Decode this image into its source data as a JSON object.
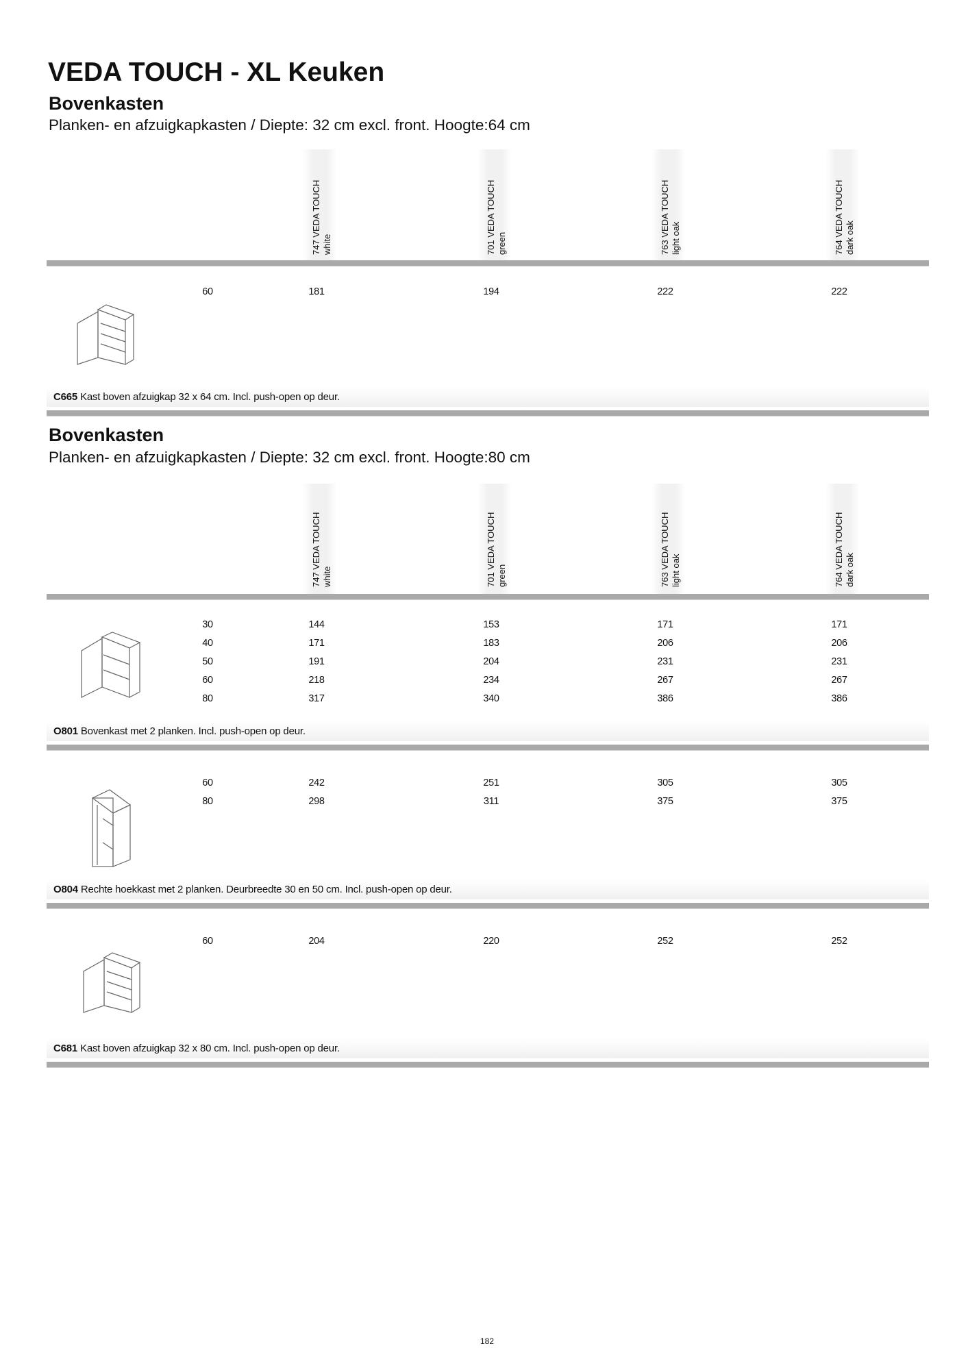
{
  "title": "VEDA TOUCH - XL Keuken",
  "columns": [
    {
      "code_name": "747 VEDA TOUCH",
      "color": "white"
    },
    {
      "code_name": "701 VEDA TOUCH",
      "color": "green"
    },
    {
      "code_name": "763 VEDA TOUCH",
      "color": "light oak"
    },
    {
      "code_name": "764 VEDA TOUCH",
      "color": "dark oak"
    }
  ],
  "sections": [
    {
      "heading": "Bovenkasten",
      "subtitle": "Planken- en afzuigkapkasten / Diepte: 32 cm excl. front. Hoogte:64 cm",
      "products": [
        {
          "icon": "hood-cabinet-icon",
          "code": "C665",
          "description": "Kast boven afzuigkap 32 x 64 cm. Incl. push-open op deur.",
          "rows": [
            [
              "60",
              "181",
              "194",
              "222",
              "222"
            ]
          ]
        }
      ]
    },
    {
      "heading": "Bovenkasten",
      "subtitle": "Planken- en afzuigkapkasten / Diepte: 32 cm excl. front. Hoogte:80 cm",
      "products": [
        {
          "icon": "wall-cabinet-icon",
          "code": "O801",
          "description": "Bovenkast met 2 planken. Incl. push-open op deur.",
          "rows": [
            [
              "30",
              "144",
              "153",
              "171",
              "171"
            ],
            [
              "40",
              "171",
              "183",
              "206",
              "206"
            ],
            [
              "50",
              "191",
              "204",
              "231",
              "231"
            ],
            [
              "60",
              "218",
              "234",
              "267",
              "267"
            ],
            [
              "80",
              "317",
              "340",
              "386",
              "386"
            ]
          ]
        },
        {
          "icon": "corner-cabinet-icon",
          "code": "O804",
          "description": "Rechte hoekkast met 2 planken. Deurbreedte 30 en 50 cm. Incl. push-open op deur.",
          "rows": [
            [
              "60",
              "242",
              "251",
              "305",
              "305"
            ],
            [
              "80",
              "298",
              "311",
              "375",
              "375"
            ]
          ]
        },
        {
          "icon": "hood-cabinet-icon",
          "code": "C681",
          "description": "Kast boven afzuigkap 32 x 80 cm. Incl. push-open op deur.",
          "rows": [
            [
              "60",
              "204",
              "220",
              "252",
              "252"
            ]
          ]
        }
      ]
    }
  ],
  "page_number": "182"
}
